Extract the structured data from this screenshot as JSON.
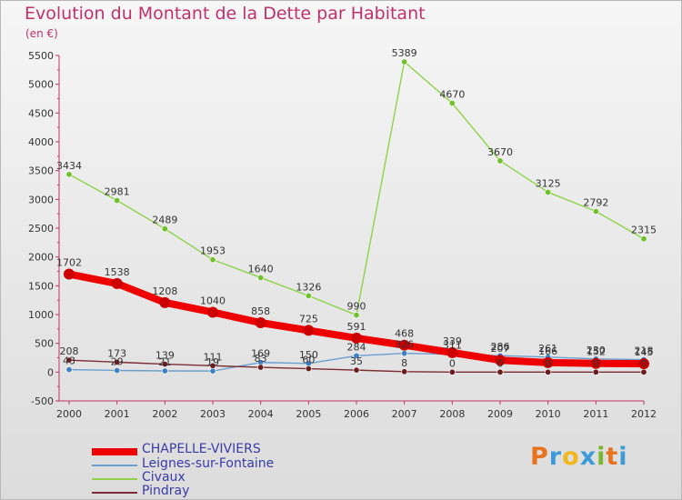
{
  "title": "Evolution du Montant de la Dette par Habitant",
  "subtitle": "(en €)",
  "logo_text": "Proxiti",
  "logo_colors": [
    "#e8731e",
    "#3d9ad8",
    "#f0b71e",
    "#3d9ad8",
    "#7ab52e",
    "#e8731e",
    "#3d9ad8"
  ],
  "chart_data": {
    "type": "line",
    "x": [
      "2000",
      "2001",
      "2002",
      "2003",
      "2004",
      "2005",
      "2006",
      "2007",
      "2008",
      "2009",
      "2010",
      "2011",
      "2012"
    ],
    "y_ticks": [
      -500,
      0,
      500,
      1000,
      1500,
      2000,
      2500,
      3000,
      3500,
      4000,
      4500,
      5000,
      5500
    ],
    "ylim": [
      -500,
      5500
    ],
    "grid": false,
    "legend_position": "bottom-left",
    "series": [
      {
        "name": "CHAPELLE-VIVIERS",
        "color": "#ee0000",
        "marker": "#cc0000",
        "values": [
          1702,
          1538,
          1208,
          1040,
          858,
          725,
          591,
          468,
          339,
          207,
          166,
          152,
          145
        ],
        "labels": [
          "1702",
          "1538",
          "1208",
          "1040",
          "858",
          "725",
          "591",
          "468",
          "339",
          "207",
          "166",
          "152",
          "145"
        ]
      },
      {
        "name": "Leignes-sur-Fontaine",
        "color": "#6a9ecf",
        "marker": "#3d7fc0",
        "values": [
          43,
          29,
          21,
          19,
          169,
          150,
          284,
          326,
          311,
          286,
          261,
          230,
          218
        ],
        "labels": [
          "43",
          "29",
          "21",
          "19",
          "169",
          "150",
          "284",
          "326",
          "311",
          "286",
          "261",
          "230",
          "218"
        ]
      },
      {
        "name": "Civaux",
        "color": "#8fd24a",
        "marker": "#6fc02a",
        "values": [
          3434,
          2981,
          2489,
          1953,
          1640,
          1326,
          990,
          5389,
          4670,
          3670,
          3125,
          2792,
          2315
        ],
        "labels": [
          "3434",
          "2981",
          "2489",
          "1953",
          "1640",
          "1326",
          "990",
          "5389",
          "4670",
          "3670",
          "3125",
          "2792",
          "2315"
        ]
      },
      {
        "name": "Pindray",
        "color": "#7a2b33",
        "marker": "#6a1c22",
        "values": [
          208,
          173,
          139,
          111,
          83,
          60,
          35,
          8,
          0,
          0,
          0,
          0,
          0
        ],
        "labels": [
          "208",
          "173",
          "139",
          "111",
          "83",
          "60",
          "35",
          "8",
          "0",
          "0",
          "0",
          "0",
          "0"
        ]
      }
    ]
  }
}
